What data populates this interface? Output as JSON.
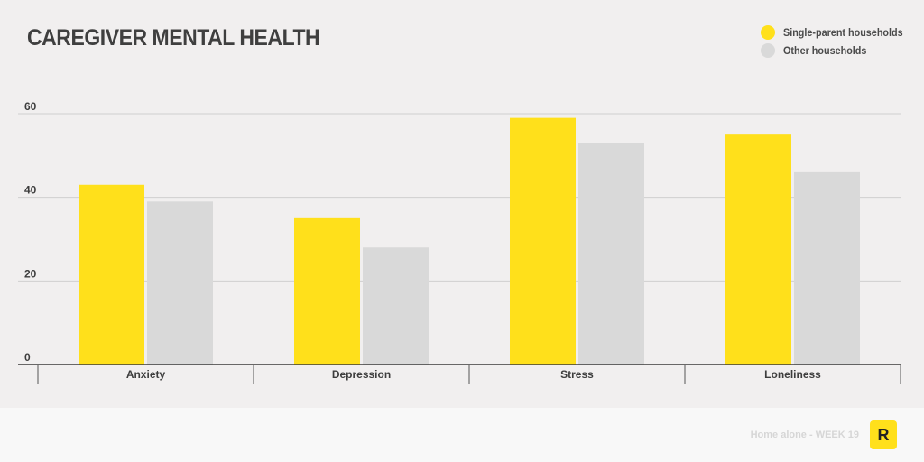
{
  "chart_data": {
    "type": "bar",
    "title": "CAREGIVER MENTAL HEALTH",
    "categories": [
      "Anxiety",
      "Depression",
      "Stress",
      "Loneliness"
    ],
    "series": [
      {
        "name": "Single-parent households",
        "values": [
          43,
          35,
          59,
          55
        ],
        "color": "#ffe01b"
      },
      {
        "name": "Other households",
        "values": [
          39,
          28,
          53,
          46
        ],
        "color": "#d9d9d9"
      }
    ],
    "ylim": [
      0,
      60
    ],
    "yticks": [
      0,
      20,
      40,
      60
    ],
    "xlabel": "",
    "ylabel": "",
    "grid": true,
    "legend_position": "top-right"
  },
  "footer": {
    "caption": "Home alone - WEEK 19",
    "logo_letter": "R",
    "logo_color": "#ffe01b"
  }
}
